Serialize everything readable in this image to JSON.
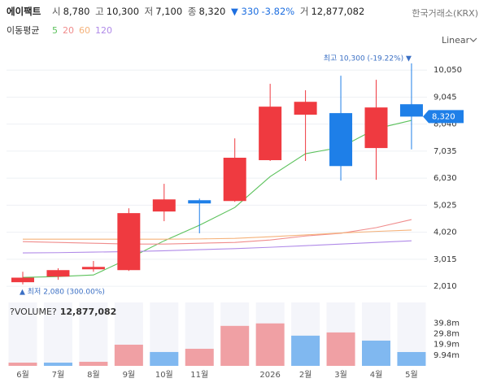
{
  "header": {
    "name": "에이팩트",
    "quote": [
      {
        "label": "시",
        "value": "8,780"
      },
      {
        "label": "고",
        "value": "10,300"
      },
      {
        "label": "저",
        "value": "7,100"
      },
      {
        "label": "종",
        "value": "8,320"
      }
    ],
    "change": "▼ 330",
    "change_pct": "-3.82%",
    "volume_label": "거",
    "volume": "12,877,082",
    "exchange": "한국거래소(KRX)"
  },
  "scale_mode": "Linear",
  "chart_data": [
    {
      "type": "candlestick",
      "legend_title": "이동평균",
      "categories": [
        "6월",
        "7월",
        "8월",
        "9월",
        "10월",
        "11월",
        null,
        "2026",
        "2월",
        "3월",
        "4월",
        "5월"
      ],
      "open": [
        2160,
        2370,
        2640,
        2610,
        4790,
        5210,
        5180,
        6700,
        8390,
        8450,
        7150,
        8780
      ],
      "high": [
        2550,
        2680,
        2950,
        4910,
        5820,
        5270,
        7510,
        9540,
        9300,
        9840,
        9690,
        10300
      ],
      "low": [
        2080,
        2250,
        2550,
        2580,
        4430,
        3980,
        5150,
        6670,
        6670,
        5940,
        5970,
        7100
      ],
      "close": [
        2330,
        2610,
        2730,
        4730,
        5240,
        5090,
        6790,
        8690,
        8870,
        6480,
        8660,
        8320
      ],
      "up_color": "#ef3a40",
      "down_color": "#1e7fe8",
      "series": [
        {
          "name": "5",
          "color": "#5cc25c",
          "values": [
            2340,
            2370,
            2430,
            3040,
            3700,
            4280,
            4940,
            6090,
            6940,
            7180,
            7870,
            8180
          ]
        },
        {
          "name": "20",
          "color": "#f08c8c",
          "values": [
            3670,
            3640,
            3610,
            3580,
            3580,
            3610,
            3640,
            3730,
            3880,
            3980,
            4190,
            4490
          ]
        },
        {
          "name": "60",
          "color": "#f5b27a",
          "values": [
            3760,
            3760,
            3760,
            3760,
            3760,
            3770,
            3790,
            3850,
            3920,
            3990,
            4050,
            4100
          ]
        },
        {
          "name": "120",
          "color": "#b08ae8",
          "values": [
            3250,
            3260,
            3280,
            3300,
            3330,
            3370,
            3410,
            3460,
            3520,
            3580,
            3640,
            3700
          ]
        }
      ],
      "ylim": [
        1710,
        10540
      ],
      "yticks": [
        {
          "value": 2010,
          "label": "2,010"
        },
        {
          "value": 3015,
          "label": "3,015"
        },
        {
          "value": 4020,
          "label": "4,020"
        },
        {
          "value": 5025,
          "label": "5,025"
        },
        {
          "value": 6030,
          "label": "6,030"
        },
        {
          "value": 7035,
          "label": "7,035"
        },
        {
          "value": 8040,
          "label": "8,040"
        },
        {
          "value": 9045,
          "label": "9,045"
        },
        {
          "value": 10050,
          "label": "10,050"
        }
      ],
      "grid": true,
      "high_annotation": "최고 10,300 (-19.22%) ▼",
      "low_annotation": "▲ 최저 2,080 (300.00%)",
      "last_price": {
        "value": 8320,
        "label": "8,320"
      }
    },
    {
      "type": "bar",
      "title": "?VOLUME?",
      "current": {
        "value": 12877082,
        "label": "12,877,082"
      },
      "values": [
        3000000,
        3000000,
        3800000,
        19700000,
        12900000,
        15900000,
        37200000,
        39500000,
        28100000,
        31100000,
        23500000,
        12877082
      ],
      "colors": [
        "#f0a0a4",
        "#80b8f0",
        "#f0a0a4",
        "#f0a0a4",
        "#80b8f0",
        "#f0a0a4",
        "#f0a0a4",
        "#f0a0a4",
        "#80b8f0",
        "#f0a0a4",
        "#80b8f0",
        "#80b8f0"
      ],
      "ylim": [
        0,
        59000000
      ],
      "yticks": [
        {
          "value": 9940000,
          "label": "9.94m"
        },
        {
          "value": 19900000,
          "label": "19.9m"
        },
        {
          "value": 29800000,
          "label": "29.8m"
        },
        {
          "value": 39800000,
          "label": "39.8m"
        }
      ]
    }
  ]
}
